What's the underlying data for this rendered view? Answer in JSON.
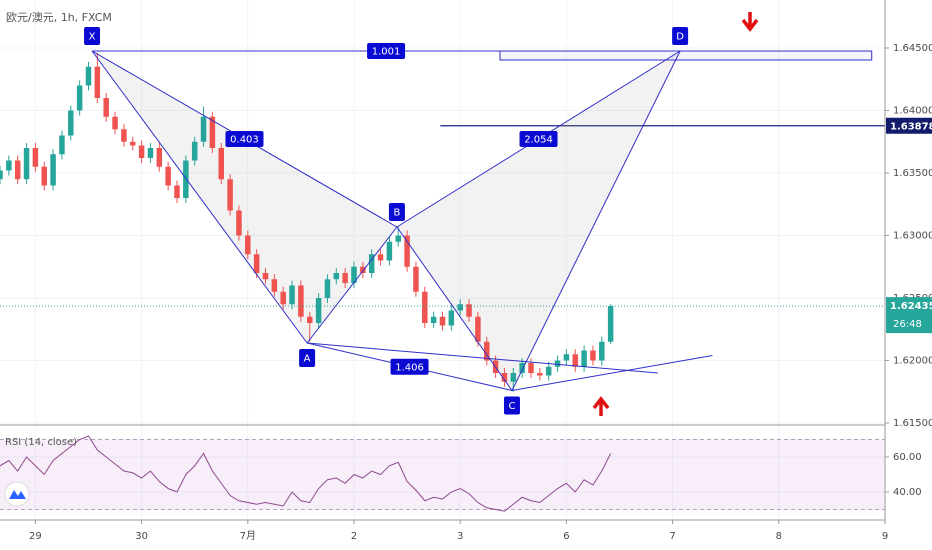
{
  "chart_data": {
    "type": "candlestick",
    "title": "欧元/澳元, 1h, FXCM",
    "x": [
      -8,
      -6,
      -4,
      -2,
      0,
      2,
      4,
      6,
      8,
      10,
      12,
      14,
      16,
      18,
      20,
      22,
      24,
      26,
      28,
      30,
      32,
      34,
      36,
      38,
      40,
      42,
      44,
      46,
      48,
      50,
      52,
      54,
      56,
      58,
      60,
      62,
      64,
      66,
      68,
      70,
      72,
      74,
      76,
      78,
      80,
      82,
      84,
      86,
      88,
      90,
      92,
      94,
      96,
      98,
      100,
      102,
      104,
      106,
      108,
      110,
      112,
      114,
      116,
      118,
      120,
      122,
      124,
      126,
      128,
      130
    ],
    "open": [
      1.6345,
      1.6352,
      1.636,
      1.6345,
      1.637,
      1.6355,
      1.634,
      1.6365,
      1.638,
      1.64,
      1.642,
      1.6435,
      1.641,
      1.6395,
      1.6385,
      1.6375,
      1.6372,
      1.6362,
      1.637,
      1.6355,
      1.634,
      1.633,
      1.636,
      1.6375,
      1.6395,
      1.637,
      1.6345,
      1.632,
      1.63,
      1.6285,
      1.627,
      1.6265,
      1.6255,
      1.6245,
      1.626,
      1.6235,
      1.623,
      1.625,
      1.6265,
      1.627,
      1.6262,
      1.6275,
      1.627,
      1.6285,
      1.628,
      1.6295,
      1.63,
      1.6275,
      1.6255,
      1.623,
      1.6235,
      1.6228,
      1.624,
      1.6245,
      1.6235,
      1.6215,
      1.62,
      1.619,
      1.6183,
      1.619,
      1.6198,
      1.619,
      1.6188,
      1.6195,
      1.62,
      1.6205,
      1.6195,
      1.6208,
      1.62,
      1.6215
    ],
    "high": [
      1.6356,
      1.6364,
      1.6364,
      1.6374,
      1.6374,
      1.6359,
      1.6369,
      1.6384,
      1.6404,
      1.6424,
      1.6439,
      1.6446,
      1.6414,
      1.6399,
      1.6389,
      1.6379,
      1.6376,
      1.6374,
      1.6374,
      1.6359,
      1.6344,
      1.6364,
      1.6379,
      1.6403,
      1.6399,
      1.6374,
      1.6349,
      1.6324,
      1.6304,
      1.6289,
      1.6274,
      1.6269,
      1.6259,
      1.6264,
      1.6264,
      1.6239,
      1.6254,
      1.6269,
      1.6274,
      1.6274,
      1.6279,
      1.6279,
      1.6289,
      1.6289,
      1.6299,
      1.6307,
      1.6304,
      1.6279,
      1.6259,
      1.6239,
      1.6239,
      1.6244,
      1.6249,
      1.6249,
      1.6239,
      1.6219,
      1.6204,
      1.6194,
      1.6194,
      1.6202,
      1.6202,
      1.6194,
      1.6199,
      1.6204,
      1.6209,
      1.6209,
      1.6212,
      1.6212,
      1.6219,
      1.6245
    ],
    "low": [
      1.6341,
      1.6348,
      1.6341,
      1.6341,
      1.6351,
      1.6336,
      1.6336,
      1.6361,
      1.6376,
      1.6396,
      1.6416,
      1.6406,
      1.6391,
      1.6381,
      1.6371,
      1.6368,
      1.6358,
      1.6358,
      1.6351,
      1.6336,
      1.6326,
      1.6326,
      1.6356,
      1.6371,
      1.6366,
      1.6341,
      1.6316,
      1.6296,
      1.6281,
      1.6266,
      1.6261,
      1.6251,
      1.6241,
      1.6241,
      1.6231,
      1.6215,
      1.6226,
      1.6246,
      1.6261,
      1.6258,
      1.6258,
      1.6266,
      1.6266,
      1.6276,
      1.6276,
      1.6291,
      1.6271,
      1.6251,
      1.6226,
      1.6226,
      1.6224,
      1.6224,
      1.6236,
      1.6231,
      1.6211,
      1.6196,
      1.6186,
      1.6179,
      1.6175,
      1.6186,
      1.6186,
      1.6184,
      1.6184,
      1.6191,
      1.6196,
      1.6191,
      1.6191,
      1.6196,
      1.6196,
      1.6213
    ],
    "close": [
      1.6352,
      1.636,
      1.6345,
      1.637,
      1.6355,
      1.634,
      1.6365,
      1.638,
      1.64,
      1.642,
      1.6435,
      1.641,
      1.6395,
      1.6385,
      1.6375,
      1.6372,
      1.6362,
      1.637,
      1.6355,
      1.634,
      1.633,
      1.636,
      1.6375,
      1.6395,
      1.637,
      1.6345,
      1.632,
      1.63,
      1.6285,
      1.627,
      1.6265,
      1.6255,
      1.6245,
      1.626,
      1.6235,
      1.623,
      1.625,
      1.6265,
      1.627,
      1.6262,
      1.6275,
      1.627,
      1.6285,
      1.628,
      1.6295,
      1.63,
      1.6275,
      1.6255,
      1.623,
      1.6235,
      1.6228,
      1.624,
      1.6245,
      1.6235,
      1.6215,
      1.62,
      1.619,
      1.6183,
      1.619,
      1.6198,
      1.619,
      1.6188,
      1.6195,
      1.62,
      1.6205,
      1.6195,
      1.6208,
      1.62,
      1.6215,
      1.62435
    ],
    "up_color": "#26a69a",
    "down_color": "#ef5350",
    "xlim": [
      -8,
      192
    ],
    "ylim": [
      1.61484,
      1.64884
    ],
    "xticks": [
      {
        "value": 0,
        "label": "29"
      },
      {
        "value": 24,
        "label": "30"
      },
      {
        "value": 48,
        "label": "7月"
      },
      {
        "value": 72,
        "label": "2"
      },
      {
        "value": 96,
        "label": "3"
      },
      {
        "value": 120,
        "label": "6"
      },
      {
        "value": 144,
        "label": "7"
      },
      {
        "value": 168,
        "label": "8"
      },
      {
        "value": 192,
        "label": "9"
      }
    ],
    "yticks": [
      {
        "value": 1.615,
        "label": "1.61500"
      },
      {
        "value": 1.62,
        "label": "1.62000"
      },
      {
        "value": 1.625,
        "label": "1.62500"
      },
      {
        "value": 1.63,
        "label": "1.63000"
      },
      {
        "value": 1.635,
        "label": "1.63500"
      },
      {
        "value": 1.64,
        "label": "1.64000"
      },
      {
        "value": 1.645,
        "label": "1.64500"
      }
    ],
    "grid": true,
    "countdown": "26:48",
    "hline": {
      "x": [
        91.5,
        192
      ],
      "value": 1.63878
    },
    "rect": {
      "x": [
        105,
        189
      ],
      "y": [
        1.64476,
        1.64404
      ]
    },
    "pattern": {
      "color": "#2f2fc8",
      "points": [
        {
          "label": "X",
          "x": 12.8,
          "y": 1.64476
        },
        {
          "label": "A",
          "x": 61.4,
          "y": 1.6214
        },
        {
          "label": "B",
          "x": 81.7,
          "y": 1.63068
        },
        {
          "label": "C",
          "x": 107.7,
          "y": 1.6176
        },
        {
          "label": "D",
          "x": 145.7,
          "y": 1.64476
        }
      ],
      "ratios": [
        {
          "from": 0,
          "to": 2,
          "value": 0.403
        },
        {
          "from": 1,
          "to": 3,
          "value": 1.406
        },
        {
          "from": 2,
          "to": 4,
          "value": 2.054
        },
        {
          "from": 0,
          "to": 4,
          "value": 1.001
        }
      ]
    },
    "trendlines": [
      {
        "x": [
          61.4,
          140.7
        ],
        "y": [
          1.6214,
          1.619
        ]
      },
      {
        "x": [
          107.7,
          153
        ],
        "y": [
          1.6176,
          1.6204
        ]
      }
    ],
    "indicator": {
      "type": "line",
      "name": "RSI (14, close)",
      "color": "#8e4a8e",
      "values": [
        55,
        58,
        52,
        60,
        55,
        50,
        58,
        62,
        66,
        70,
        72,
        64,
        60,
        56,
        52,
        51,
        48,
        52,
        46,
        42,
        40,
        50,
        55,
        62,
        52,
        45,
        38,
        35,
        34,
        33,
        34,
        33,
        32,
        40,
        35,
        34,
        42,
        47,
        48,
        45,
        50,
        48,
        52,
        50,
        55,
        57,
        46,
        41,
        35,
        37,
        36,
        40,
        42,
        39,
        34,
        31,
        30,
        29,
        33,
        37,
        35,
        34,
        38,
        42,
        45,
        40,
        47,
        44,
        52,
        62
      ],
      "ylim": [
        24,
        78.3
      ],
      "yticks": [
        {
          "value": 40,
          "label": "40.00"
        },
        {
          "value": 60,
          "label": "60.00"
        }
      ],
      "band": [
        30,
        70
      ]
    }
  }
}
